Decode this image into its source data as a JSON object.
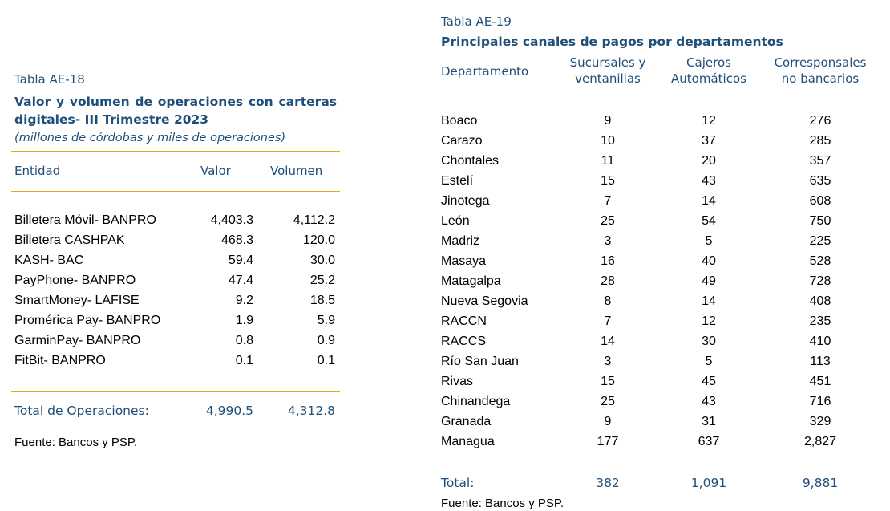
{
  "table_ae18": {
    "label": "Tabla AE-18",
    "title": "Valor y volumen de operaciones con carteras digitales- III Trimestre 2023",
    "subtitle": "(millones de córdobas y miles de operaciones)",
    "headers": {
      "entity": "Entidad",
      "value": "Valor",
      "volume": "Volumen"
    },
    "rows": [
      {
        "entity": "Billetera Móvil- BANPRO",
        "value": "4,403.3",
        "volume": "4,112.2"
      },
      {
        "entity": "Billetera CASHPAK",
        "value": "468.3",
        "volume": "120.0"
      },
      {
        "entity": "KASH- BAC",
        "value": "59.4",
        "volume": "30.0"
      },
      {
        "entity": "PayPhone- BANPRO",
        "value": "47.4",
        "volume": "25.2"
      },
      {
        "entity": "SmartMoney- LAFISE",
        "value": "9.2",
        "volume": "18.5"
      },
      {
        "entity": "Promérica Pay- BANPRO",
        "value": "1.9",
        "volume": "5.9"
      },
      {
        "entity": "GarminPay- BANPRO",
        "value": "0.8",
        "volume": "0.9"
      },
      {
        "entity": "FitBit- BANPRO",
        "value": "0.1",
        "volume": "0.1"
      }
    ],
    "total": {
      "label": "Total de Operaciones:",
      "value": "4,990.5",
      "volume": "4,312.8"
    },
    "source": "Fuente: Bancos y PSP."
  },
  "table_ae19": {
    "label": "Tabla AE-19",
    "title": "Principales canales de pagos por departamentos",
    "headers": {
      "department": "Departamento",
      "branches_l1": "Sucursales y",
      "branches_l2": "ventanillas",
      "atm_l1": "Cajeros",
      "atm_l2": "Automáticos",
      "agents_l1": "Corresponsales",
      "agents_l2": "no bancarios"
    },
    "rows": [
      {
        "department": "Boaco",
        "branches": "9",
        "atms": "12",
        "agents": "276"
      },
      {
        "department": "Carazo",
        "branches": "10",
        "atms": "37",
        "agents": "285"
      },
      {
        "department": "Chontales",
        "branches": "11",
        "atms": "20",
        "agents": "357"
      },
      {
        "department": "Estelí",
        "branches": "15",
        "atms": "43",
        "agents": "635"
      },
      {
        "department": "Jinotega",
        "branches": "7",
        "atms": "14",
        "agents": "608"
      },
      {
        "department": "León",
        "branches": "25",
        "atms": "54",
        "agents": "750"
      },
      {
        "department": "Madriz",
        "branches": "3",
        "atms": "5",
        "agents": "225"
      },
      {
        "department": "Masaya",
        "branches": "16",
        "atms": "40",
        "agents": "528"
      },
      {
        "department": "Matagalpa",
        "branches": "28",
        "atms": "49",
        "agents": "728"
      },
      {
        "department": "Nueva Segovia",
        "branches": "8",
        "atms": "14",
        "agents": "408"
      },
      {
        "department": "RACCN",
        "branches": "7",
        "atms": "12",
        "agents": "235"
      },
      {
        "department": "RACCS",
        "branches": "14",
        "atms": "30",
        "agents": "410"
      },
      {
        "department": "Río San Juan",
        "branches": "3",
        "atms": "5",
        "agents": "113"
      },
      {
        "department": "Rivas",
        "branches": "15",
        "atms": "45",
        "agents": "451"
      },
      {
        "department": "Chinandega",
        "branches": "25",
        "atms": "43",
        "agents": "716"
      },
      {
        "department": "Granada",
        "branches": "9",
        "atms": "31",
        "agents": "329"
      },
      {
        "department": "Managua",
        "branches": "177",
        "atms": "637",
        "agents": "2,827"
      }
    ],
    "total": {
      "label": "Total:",
      "branches": "382",
      "atms": "1,091",
      "agents": "9,881"
    },
    "source": "Fuente: Bancos y PSP."
  }
}
